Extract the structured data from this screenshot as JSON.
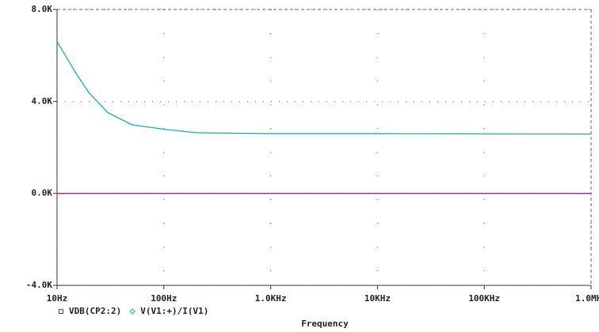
{
  "chart_data": {
    "type": "line",
    "xscale": "log",
    "grid": true,
    "xlabel": "Frequency",
    "x": [
      10,
      12,
      15,
      20,
      30,
      50,
      100,
      200,
      1000,
      10000,
      100000,
      1000000
    ],
    "xlim": [
      10,
      1000000
    ],
    "xticks": [
      {
        "value": 10,
        "label": "10Hz"
      },
      {
        "value": 100,
        "label": "100Hz"
      },
      {
        "value": 1000,
        "label": "1.0KHz"
      },
      {
        "value": 10000,
        "label": "10KHz"
      },
      {
        "value": 100000,
        "label": "100KHz"
      },
      {
        "value": 1000000,
        "label": "1.0MHz"
      }
    ],
    "ylim": [
      -4000,
      8000
    ],
    "yticks": [
      {
        "value": -4000,
        "label": "-4.0K"
      },
      {
        "value": 0,
        "label": "0.0K"
      },
      {
        "value": 4000,
        "label": "4.0K"
      },
      {
        "value": 8000,
        "label": "8.0K"
      }
    ],
    "series": [
      {
        "name": "VDB(CP2:2)",
        "color": "#a020a0",
        "values": [
          0,
          0,
          0,
          0,
          0,
          0,
          0,
          0,
          0,
          0,
          0,
          0
        ]
      },
      {
        "name": "V(V1:+)/I(V1)",
        "color": "#20a8b8",
        "values": [
          6600,
          5990,
          5230,
          4370,
          3510,
          2990,
          2790,
          2640,
          2600,
          2600,
          2590,
          2580
        ]
      }
    ]
  }
}
